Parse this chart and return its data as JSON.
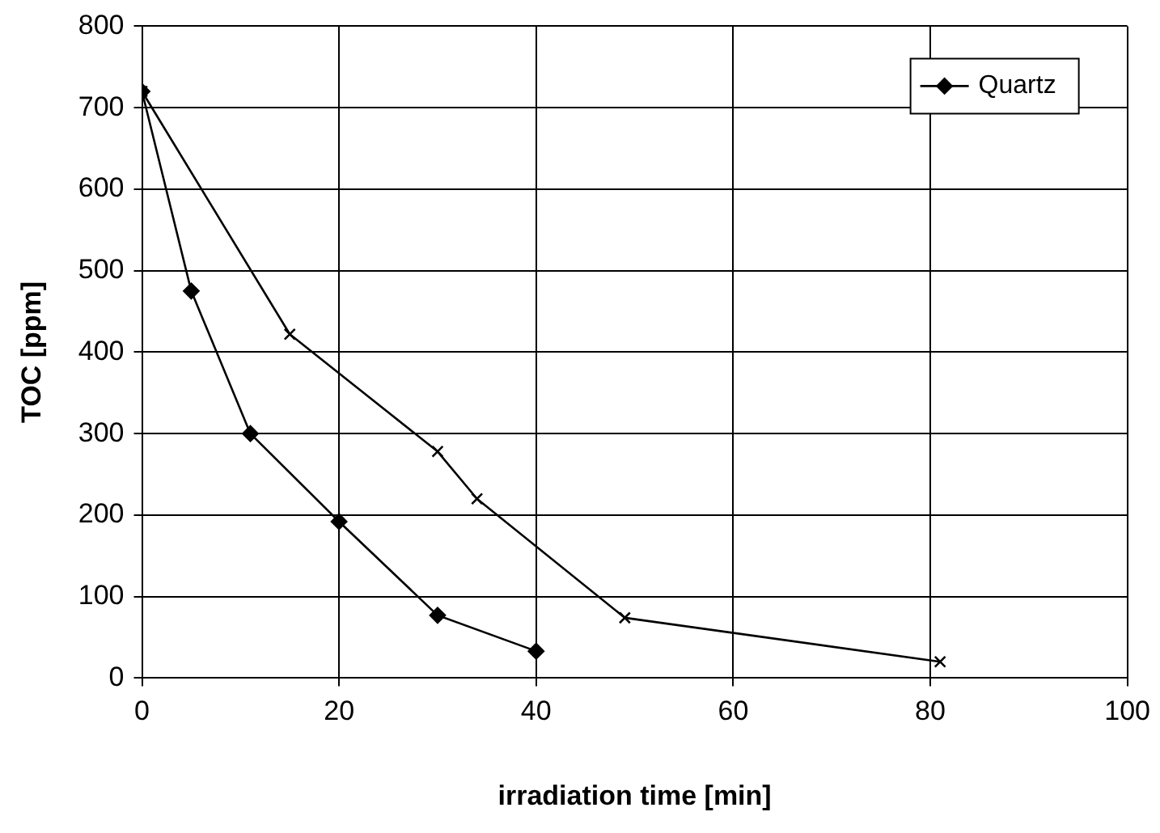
{
  "chart_data": {
    "type": "line",
    "xlabel": "irradiation time [min]",
    "ylabel": "TOC [ppm]",
    "series": [
      {
        "name": "Quartz",
        "color": "#000000",
        "marker": "diamond",
        "x": [
          0,
          5,
          11,
          20,
          30,
          40
        ],
        "values": [
          720,
          475,
          300,
          192,
          77,
          33
        ]
      },
      {
        "color": "#000000",
        "marker": "cross",
        "x": [
          0,
          15,
          30,
          34,
          49,
          81
        ],
        "values": [
          720,
          422,
          278,
          220,
          74,
          20
        ]
      }
    ],
    "xlim": [
      0,
      100
    ],
    "xticks": [
      0,
      20,
      40,
      60,
      80,
      100
    ],
    "ylim": [
      0,
      800
    ],
    "yticks": [
      0,
      100,
      200,
      300,
      400,
      500,
      600,
      700,
      800
    ],
    "grid": true,
    "legend": "top right",
    "line_style": "solid"
  }
}
